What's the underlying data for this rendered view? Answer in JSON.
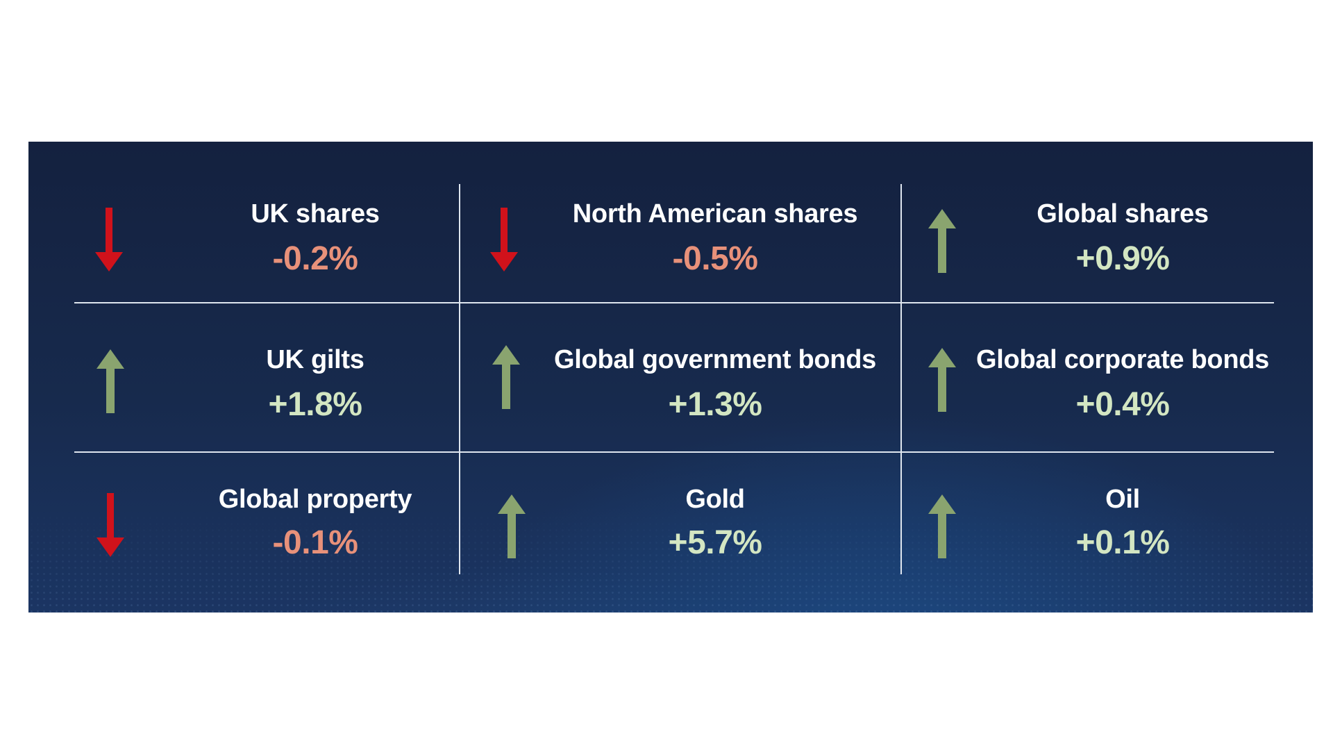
{
  "colors": {
    "down_arrow": "#d0121b",
    "up_arrow": "#8aa46f",
    "down_value": "#e8917a",
    "up_value": "#d3e6c2",
    "panel_bg": "#172a4d",
    "divider": "#dfe6ef"
  },
  "assets": [
    {
      "label": "UK shares",
      "value": "-0.2%",
      "direction": "down",
      "icon": "down-arrow-icon"
    },
    {
      "label": "North American shares",
      "value": "-0.5%",
      "direction": "down",
      "icon": "down-arrow-icon"
    },
    {
      "label": "Global shares",
      "value": "+0.9%",
      "direction": "up",
      "icon": "up-arrow-icon"
    },
    {
      "label": "UK gilts",
      "value": "+1.8%",
      "direction": "up",
      "icon": "up-arrow-icon"
    },
    {
      "label": "Global government bonds",
      "value": "+1.3%",
      "direction": "up",
      "icon": "up-arrow-icon"
    },
    {
      "label": "Global corporate bonds",
      "value": "+0.4%",
      "direction": "up",
      "icon": "up-arrow-icon"
    },
    {
      "label": "Global property",
      "value": "-0.1%",
      "direction": "down",
      "icon": "down-arrow-icon"
    },
    {
      "label": "Gold",
      "value": "+5.7%",
      "direction": "up",
      "icon": "up-arrow-icon"
    },
    {
      "label": "Oil",
      "value": "+0.1%",
      "direction": "up",
      "icon": "up-arrow-icon"
    }
  ]
}
